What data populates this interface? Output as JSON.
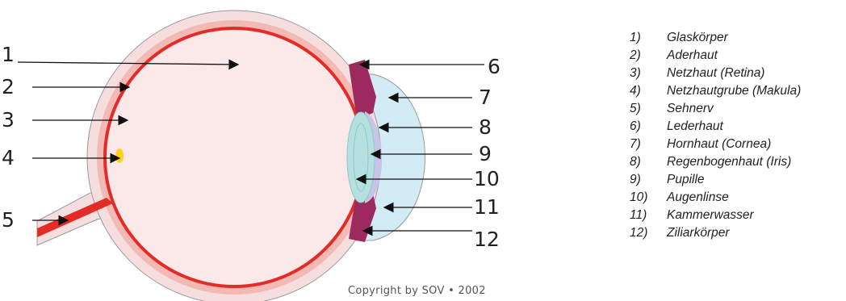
{
  "diagram": {
    "callouts": [
      "1",
      "2",
      "3",
      "4",
      "5",
      "6",
      "7",
      "8",
      "9",
      "10",
      "11",
      "12"
    ],
    "copyright": "Copyright by SOV • 2002",
    "colors": {
      "sclera_outer": "#f6dede",
      "choroid": "#f3b9b4",
      "retina": "#e32c27",
      "vitreous": "#fbe8e8",
      "macula": "#ffd21a",
      "ciliary": "#9c2a5f",
      "cornea_aqueous": "#d2ebf4",
      "iris": "#c8c4e8",
      "lens": "#b6e0df",
      "arrow": "#111111"
    }
  },
  "legend": {
    "items": [
      {
        "num": "1)",
        "label": "Glaskörper"
      },
      {
        "num": "2)",
        "label": "Aderhaut"
      },
      {
        "num": "3)",
        "label": "Netzhaut (Retina)"
      },
      {
        "num": "4)",
        "label": "Netzhautgrube (Makula)"
      },
      {
        "num": "5)",
        "label": "Sehnerv"
      },
      {
        "num": "6)",
        "label": "Lederhaut"
      },
      {
        "num": "7)",
        "label": "Hornhaut (Cornea)"
      },
      {
        "num": "8)",
        "label": "Regenbogenhaut (Iris)"
      },
      {
        "num": "9)",
        "label": "Pupille"
      },
      {
        "num": "10)",
        "label": "Augenlinse"
      },
      {
        "num": "11)",
        "label": "Kammerwasser"
      },
      {
        "num": "12)",
        "label": "Ziliarkörper"
      }
    ]
  }
}
